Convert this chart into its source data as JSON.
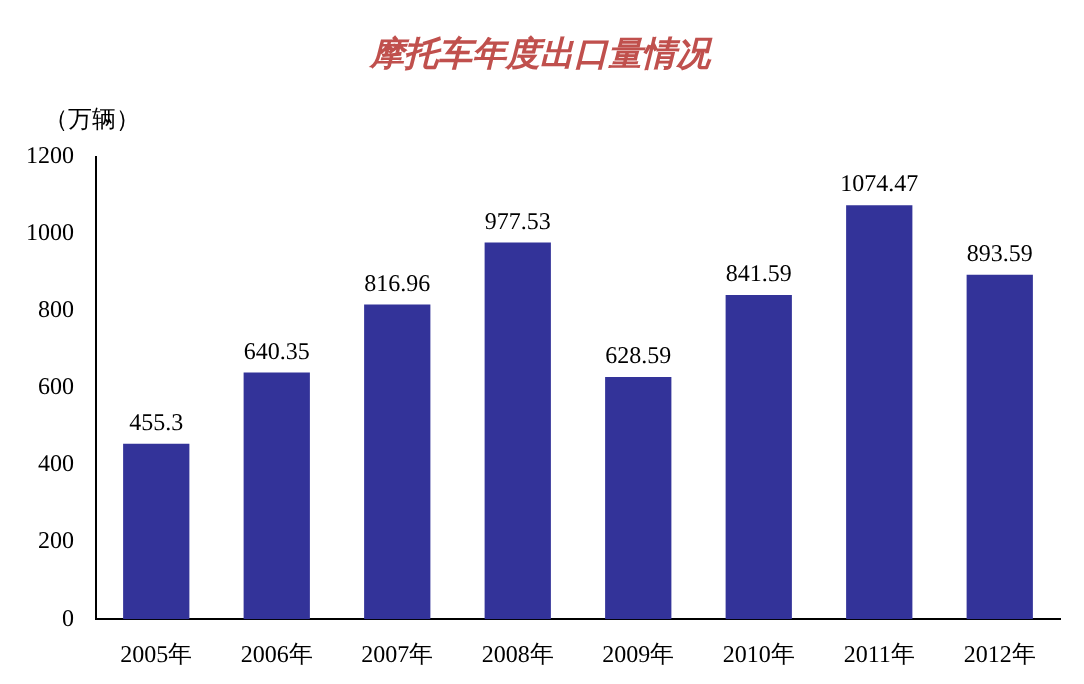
{
  "chart_data": {
    "type": "bar",
    "title": "摩托车年度出口量情况",
    "ylabel": "（万辆）",
    "categories": [
      "2005年",
      "2006年",
      "2007年",
      "2008年",
      "2009年",
      "2010年",
      "2011年",
      "2012年"
    ],
    "values": [
      455.3,
      640.35,
      816.96,
      977.53,
      628.59,
      841.59,
      1074.47,
      893.59
    ],
    "color": "#333399",
    "ylim": [
      0,
      1200
    ],
    "yticks": [
      0,
      200,
      400,
      600,
      800,
      1000,
      1200
    ],
    "grid": false,
    "legend": false,
    "data_labels": true
  }
}
